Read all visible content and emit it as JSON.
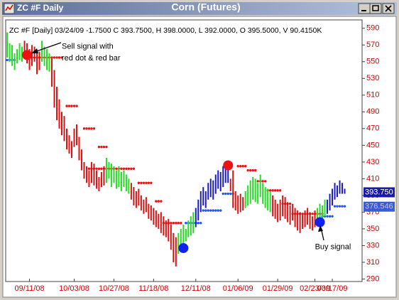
{
  "chart_data": {
    "type": "ohlc",
    "window_title": "ZC #F Daily",
    "title": "Corn (Futures)",
    "subtitle": "ZC #F [Daily] 03/24/09 -1.7500 C 393.7500, H 398.0000, L 392.0000, O 395.5000, V 90.4150K",
    "ylim": [
      287,
      600
    ],
    "yticks": [
      290,
      310,
      330,
      350,
      370,
      390,
      410,
      430,
      450,
      470,
      490,
      510,
      530,
      550,
      570,
      590
    ],
    "xlim": [
      -0.6,
      143
    ],
    "xticks": [
      {
        "value": 9,
        "label": "09/11/08"
      },
      {
        "value": 27,
        "label": "10/03/08"
      },
      {
        "value": 43,
        "label": "10/27/08"
      },
      {
        "value": 59,
        "label": "11/18/08"
      },
      {
        "value": 76,
        "label": "12/11/08"
      },
      {
        "value": 93,
        "label": "01/06/09"
      },
      {
        "value": 109,
        "label": "01/29/09"
      },
      {
        "value": 124,
        "label": "02/23/09"
      },
      {
        "value": 131,
        "label": "03/17/09"
      }
    ],
    "series": [
      {
        "color": "#22dd22",
        "x": [
          0,
          1,
          2,
          3,
          4,
          5,
          6
        ],
        "high": [
          585,
          572,
          570,
          560,
          565,
          572,
          568
        ],
        "low": [
          555,
          550,
          545,
          540,
          548,
          552,
          550
        ]
      },
      {
        "color": "#dd1111",
        "x": [
          7,
          8,
          9,
          10,
          11,
          12,
          13
        ],
        "high": [
          575,
          572,
          565,
          570,
          568,
          560,
          562
        ],
        "low": [
          555,
          548,
          540,
          545,
          550,
          535,
          540
        ]
      },
      {
        "color": "#22dd22",
        "x": [
          14,
          15,
          16,
          17
        ],
        "high": [
          575,
          568,
          565,
          560
        ],
        "low": [
          550,
          545,
          540,
          538
        ]
      },
      {
        "color": "#dd1111",
        "x": [
          18,
          19,
          20,
          21,
          22,
          23,
          24,
          25,
          26,
          27,
          28,
          29,
          30,
          31,
          32,
          33,
          34,
          35,
          36,
          37,
          38,
          39
        ],
        "high": [
          555,
          540,
          520,
          505,
          490,
          485,
          470,
          462,
          455,
          470,
          475,
          460,
          445,
          430,
          425,
          420,
          430,
          428,
          420,
          412,
          418,
          425
        ],
        "low": [
          520,
          495,
          480,
          470,
          462,
          455,
          445,
          440,
          435,
          448,
          450,
          432,
          420,
          410,
          405,
          400,
          405,
          402,
          398,
          395,
          400,
          402
        ]
      },
      {
        "color": "#22dd22",
        "x": [
          40,
          41,
          42,
          43,
          44,
          45,
          46,
          47,
          48,
          49
        ],
        "high": [
          435,
          430,
          428,
          425,
          420,
          425,
          418,
          420,
          415,
          410
        ],
        "low": [
          405,
          410,
          400,
          405,
          398,
          400,
          395,
          400,
          395,
          392
        ]
      },
      {
        "color": "#dd1111",
        "x": [
          50,
          51,
          52,
          53,
          54,
          55,
          56,
          57,
          58,
          59,
          60,
          61,
          62,
          63,
          64,
          65,
          66,
          67,
          68
        ],
        "high": [
          405,
          400,
          395,
          398,
          390,
          385,
          388,
          380,
          378,
          375,
          372,
          368,
          370,
          365,
          360,
          362,
          355,
          345,
          340
        ],
        "low": [
          385,
          378,
          375,
          378,
          372,
          368,
          370,
          362,
          360,
          355,
          352,
          350,
          345,
          342,
          340,
          335,
          325,
          310,
          305
        ]
      },
      {
        "color": "#22dd22",
        "x": [
          69,
          70,
          71,
          72,
          73,
          74,
          75
        ],
        "high": [
          345,
          350,
          355,
          350,
          360,
          365,
          370
        ],
        "low": [
          320,
          325,
          330,
          335,
          340,
          342,
          345
        ]
      },
      {
        "color": "#1a1acc",
        "x": [
          76,
          77,
          78,
          79,
          80,
          81,
          82,
          83,
          84,
          85,
          86,
          87,
          88,
          89
        ],
        "high": [
          375,
          385,
          395,
          400,
          395,
          405,
          410,
          408,
          415,
          420,
          418,
          425,
          430,
          428
        ],
        "low": [
          352,
          360,
          370,
          378,
          375,
          385,
          388,
          385,
          392,
          398,
          395,
          400,
          405,
          405
        ]
      },
      {
        "color": "#dd1111",
        "x": [
          90,
          91,
          92,
          93,
          94,
          95
        ],
        "high": [
          410,
          420,
          395,
          390,
          392,
          388
        ],
        "low": [
          395,
          375,
          372,
          368,
          370,
          372
        ]
      },
      {
        "color": "#22dd22",
        "x": [
          96,
          97,
          98,
          99,
          100,
          101,
          102,
          103,
          104,
          105,
          106
        ],
        "high": [
          395,
          402,
          408,
          412,
          410,
          405,
          415,
          405,
          400,
          398,
          395
        ],
        "low": [
          375,
          378,
          380,
          385,
          382,
          380,
          388,
          380,
          375,
          372,
          370
        ]
      },
      {
        "color": "#dd1111",
        "x": [
          107,
          108,
          109,
          110,
          111,
          112,
          113,
          114,
          115,
          116,
          117,
          118,
          119,
          120,
          121,
          122,
          123,
          124
        ],
        "high": [
          390,
          385,
          380,
          385,
          390,
          388,
          382,
          378,
          380,
          375,
          372,
          370,
          368,
          372,
          375,
          370,
          365,
          372
        ],
        "low": [
          365,
          362,
          358,
          360,
          365,
          362,
          358,
          355,
          360,
          352,
          348,
          345,
          350,
          352,
          355,
          350,
          348,
          352
        ]
      },
      {
        "color": "#22dd22",
        "x": [
          125,
          126,
          127,
          128
        ],
        "high": [
          375,
          380,
          378,
          385
        ],
        "low": [
          355,
          358,
          360,
          365
        ]
      },
      {
        "color": "#1a1acc",
        "x": [
          129,
          130,
          131,
          132,
          133,
          134,
          135,
          136
        ],
        "high": [
          385,
          392,
          398,
          405,
          402,
          408,
          405,
          398
        ],
        "low": [
          368,
          372,
          378,
          385,
          388,
          392,
          392,
          392
        ]
      }
    ],
    "levels": [
      {
        "color": "#ee1111",
        "value": 555,
        "x": [
          8,
          22
        ]
      },
      {
        "color": "#ee1111",
        "value": 497,
        "x": [
          24,
          28
        ]
      },
      {
        "color": "#ee1111",
        "value": 470,
        "x": [
          31,
          35
        ]
      },
      {
        "color": "#ee1111",
        "value": 448,
        "x": [
          37,
          40
        ]
      },
      {
        "color": "#ee1111",
        "value": 422,
        "x": [
          33,
          51
        ]
      },
      {
        "color": "#ee1111",
        "value": 405,
        "x": [
          53,
          58
        ]
      },
      {
        "color": "#ee1111",
        "value": 383,
        "x": [
          60,
          62
        ]
      },
      {
        "color": "#ee1111",
        "value": 357,
        "x": [
          63,
          70
        ]
      },
      {
        "color": "#ee1111",
        "value": 425,
        "x": [
          93,
          96
        ]
      },
      {
        "color": "#ee1111",
        "value": 420,
        "x": [
          97,
          100
        ]
      },
      {
        "color": "#ee1111",
        "value": 407,
        "x": [
          101,
          104
        ]
      },
      {
        "color": "#ee1111",
        "value": 396,
        "x": [
          105,
          110
        ]
      },
      {
        "color": "#ee1111",
        "value": 380,
        "x": [
          111,
          114
        ]
      },
      {
        "color": "#ee1111",
        "value": 368,
        "x": [
          115,
          127
        ]
      },
      {
        "color": "#2255ee",
        "value": 552,
        "x": [
          0,
          3
        ]
      },
      {
        "color": "#2255ee",
        "value": 357,
        "x": [
          72,
          78
        ]
      },
      {
        "color": "#2255ee",
        "value": 372,
        "x": [
          79,
          86
        ]
      },
      {
        "color": "#2255ee",
        "value": 392,
        "x": [
          87,
          91
        ]
      },
      {
        "color": "#2255ee",
        "value": 365,
        "x": [
          127,
          131
        ]
      },
      {
        "color": "#2255ee",
        "value": 377,
        "x": [
          132,
          136
        ]
      }
    ],
    "signals": [
      {
        "color": "#ee1111",
        "x": 8,
        "value": 558
      },
      {
        "color": "#ee1111",
        "x": 89,
        "value": 426
      },
      {
        "color": "#1122ee",
        "x": 71,
        "value": 327
      },
      {
        "color": "#1122ee",
        "x": 126,
        "value": 358
      }
    ],
    "price_labels": [
      {
        "value": 393.75,
        "label": "393.750",
        "color": "#1a1aaa",
        "text_color": "#ffffff"
      },
      {
        "value": 376.546,
        "label": "376.546",
        "color": "#3a5adc",
        "text_color": "#c8c8c8"
      }
    ],
    "annotations": [
      {
        "text": "Sell signal with",
        "x": 22,
        "value": 568
      },
      {
        "text": "red dot & red bar",
        "x": 22,
        "value": 554
      },
      {
        "text": "Buy signal",
        "x": 124,
        "value": 328
      }
    ]
  }
}
